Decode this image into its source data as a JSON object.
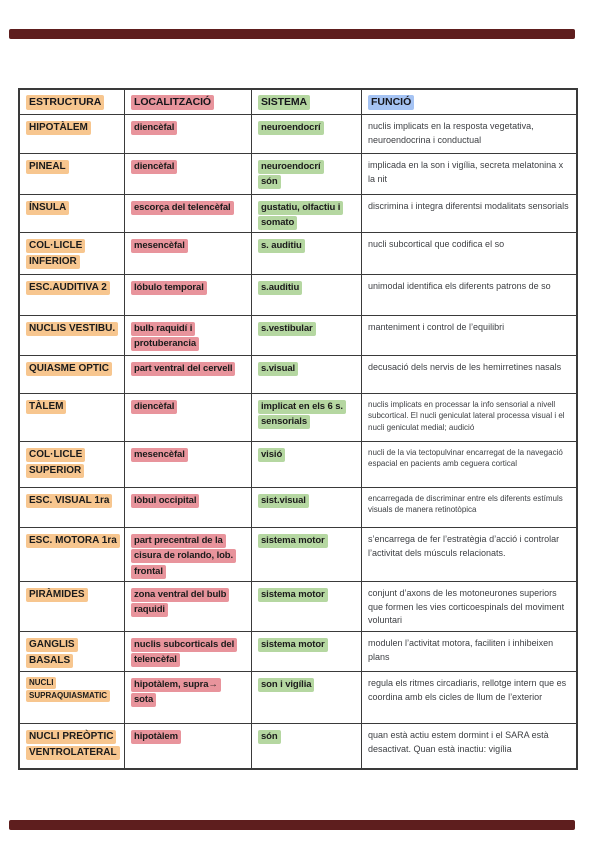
{
  "colors": {
    "highlight_orange": "#f7c68f",
    "highlight_red": "#e8949c",
    "highlight_green": "#b5d7a1",
    "highlight_blue": "#a5c3f3",
    "banner": "#5e1e1e",
    "border": "#3a3a3a"
  },
  "table": {
    "headers": [
      "ESTRUCTURA",
      "LOCALITZACIÓ",
      "SISTEMA",
      "FUNCIÓ"
    ],
    "rows": [
      {
        "estructura": "HIPOTÀLEM",
        "localitzacio": "diencèfal",
        "sistema": "neuroendocrí",
        "funcio": "nuclis implicats en la resposta vegetativa, neuroendocrina i conductual"
      },
      {
        "estructura": "PINEAL",
        "localitzacio": "diencèfal",
        "sistema": "neuroendocrí\nsón",
        "funcio": "implicada en la son i vigília, secreta melatonina x la nit"
      },
      {
        "estructura": "ÍNSULA",
        "localitzacio": "escorça del telencèfal",
        "sistema": "gustatiu, olfactiu i\nsomato",
        "funcio": "discrimina i integra diferentsi modalitats sensorials"
      },
      {
        "estructura": "COL·LICLE\nINFERIOR",
        "localitzacio": "mesencèfal",
        "sistema": "s. auditiu",
        "funcio": "nucli subcortical que codifica el so"
      },
      {
        "estructura": "ESC.AUDITIVA 2",
        "localitzacio": "lóbulo temporal",
        "sistema": "s.auditiu",
        "funcio": "unimodal identifica els diferents patrons de so"
      },
      {
        "estructura": "NUCLIS VESTIBU.",
        "localitzacio": "bulb raquidí i\nprotuberancia",
        "sistema": "s.vestibular",
        "funcio": "manteniment i control de l’equilibri"
      },
      {
        "estructura": "QUIASME OPTIC",
        "localitzacio": "part ventral del cervell",
        "sistema": "s.visual",
        "funcio": "decusació dels nervis de les hemirretines nasals"
      },
      {
        "estructura": "TÀLEM",
        "localitzacio": "diencèfal",
        "sistema": "implicat en els 6 s.\nsensorials",
        "funcio": "nuclis implicats en processar la info sensorial a nivell subcortical. El nucli geniculat lateral processa visual i el nucli geniculat medial; audició"
      },
      {
        "estructura": "COL·LICLE\nSUPERIOR",
        "localitzacio": "mesencèfal",
        "sistema": "visió",
        "funcio": "nucli de la via tectopulvinar encarregat de la navegació espacial en pacients amb ceguera cortical"
      },
      {
        "estructura": "ESC. VISUAL 1ra",
        "localitzacio": "lòbul occipital",
        "sistema": "sist.visual",
        "funcio": "encarregada de discriminar entre els diferents estímuls visuals de manera retinotòpica"
      },
      {
        "estructura": "ESC. MOTORA 1ra",
        "localitzacio": "part precentral de la\ncisura de rolando, lob.\nfrontal",
        "sistema": "sistema motor",
        "funcio": "s’encarrega de fer l’estratègia d’acció i controlar l’activitat dels músculs relacionats."
      },
      {
        "estructura": "PIRÀMIDES",
        "localitzacio": "zona ventral del bulb\nraquidi",
        "sistema": "sistema motor",
        "funcio": "conjunt d’axons de les motoneurones superiors que formen les vies corticoespinals del moviment voluntari"
      },
      {
        "estructura": "GANGLIS\nBASALS",
        "localitzacio": "nuclis subcorticals del\ntelencèfal",
        "sistema": "sistema motor",
        "funcio": "modulen l’activitat motora, faciliten i inhibeixen plans"
      },
      {
        "estructura": "NUCLI\nSUPRAQUIASMATIC",
        "localitzacio": "hipotàlem, supra→\nsota",
        "sistema": "son i vigília",
        "funcio": "regula els ritmes circadiaris, rellotge intern que es coordina amb els cicles de llum de l’exterior"
      },
      {
        "estructura": "NUCLI PREÒPTIC\nVENTROLATERAL",
        "localitzacio": "hipotàlem",
        "sistema": "són",
        "funcio": "quan està actiu estem dormint i el SARA està desactivat. Quan està inactiu: vigília"
      }
    ]
  }
}
